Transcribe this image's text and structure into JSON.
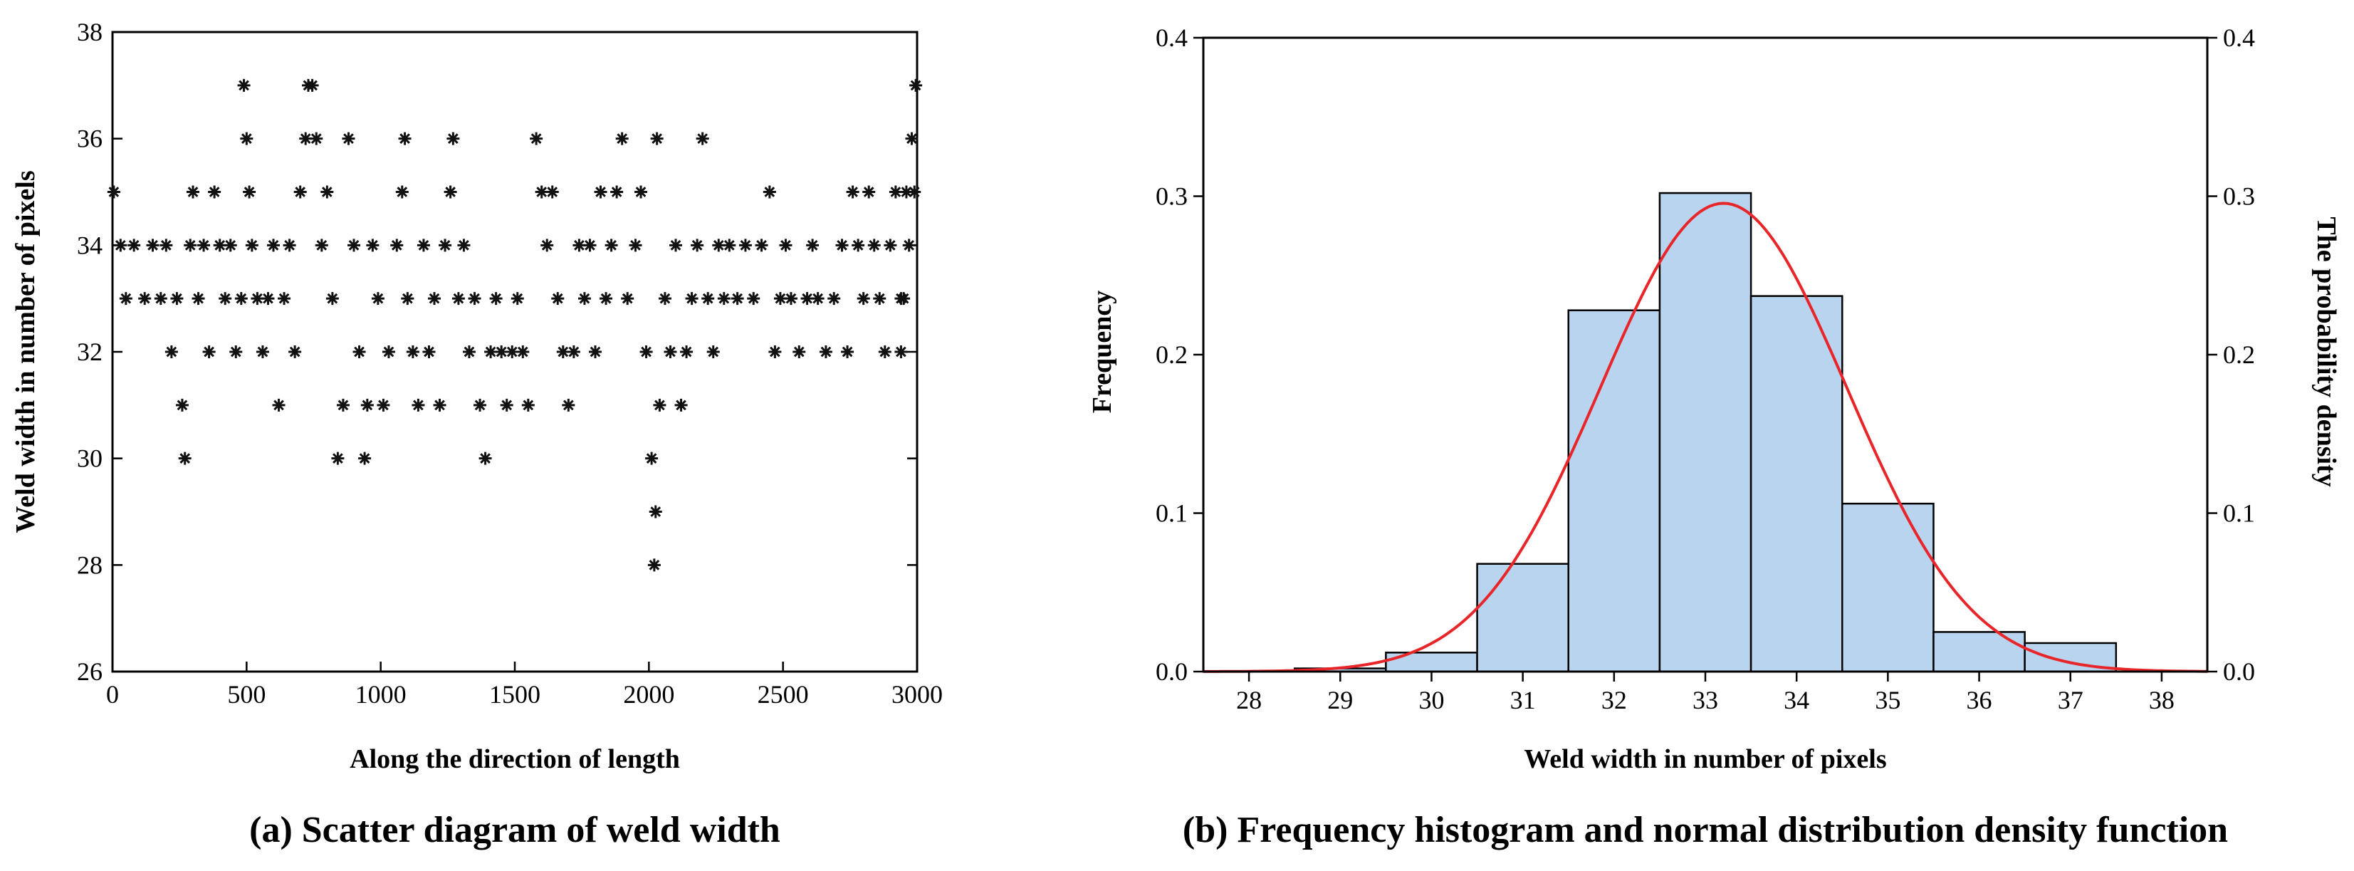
{
  "chart_data": [
    {
      "type": "scatter",
      "caption": "(a) Scatter diagram of weld width",
      "xlabel": "Along the direction of length",
      "ylabel": "Weld width in number of pixels",
      "xlim": [
        0,
        3000
      ],
      "ylim": [
        26,
        38
      ],
      "xticks": [
        "0",
        "500",
        "1000",
        "1500",
        "2000",
        "2500",
        "3000"
      ],
      "yticks": [
        "26",
        "28",
        "30",
        "32",
        "34",
        "36",
        "38"
      ],
      "marker": "asterisk",
      "series": [
        {
          "name": "width",
          "points": [
            [
              5,
              35
            ],
            [
              30,
              34
            ],
            [
              50,
              33
            ],
            [
              80,
              34
            ],
            [
              120,
              33
            ],
            [
              150,
              34
            ],
            [
              180,
              33
            ],
            [
              200,
              34
            ],
            [
              220,
              32
            ],
            [
              240,
              33
            ],
            [
              260,
              31
            ],
            [
              270,
              30
            ],
            [
              290,
              34
            ],
            [
              300,
              35
            ],
            [
              320,
              33
            ],
            [
              340,
              34
            ],
            [
              360,
              32
            ],
            [
              380,
              35
            ],
            [
              400,
              34
            ],
            [
              420,
              33
            ],
            [
              440,
              34
            ],
            [
              460,
              32
            ],
            [
              480,
              33
            ],
            [
              490,
              37
            ],
            [
              500,
              36
            ],
            [
              510,
              35
            ],
            [
              520,
              34
            ],
            [
              540,
              33
            ],
            [
              560,
              32
            ],
            [
              580,
              33
            ],
            [
              600,
              34
            ],
            [
              620,
              31
            ],
            [
              640,
              33
            ],
            [
              660,
              34
            ],
            [
              680,
              32
            ],
            [
              700,
              35
            ],
            [
              720,
              36
            ],
            [
              730,
              37
            ],
            [
              745,
              37
            ],
            [
              760,
              36
            ],
            [
              780,
              34
            ],
            [
              800,
              35
            ],
            [
              820,
              33
            ],
            [
              840,
              30
            ],
            [
              860,
              31
            ],
            [
              880,
              36
            ],
            [
              900,
              34
            ],
            [
              920,
              32
            ],
            [
              940,
              30
            ],
            [
              950,
              31
            ],
            [
              970,
              34
            ],
            [
              990,
              33
            ],
            [
              1010,
              31
            ],
            [
              1030,
              32
            ],
            [
              1060,
              34
            ],
            [
              1080,
              35
            ],
            [
              1090,
              36
            ],
            [
              1100,
              33
            ],
            [
              1120,
              32
            ],
            [
              1140,
              31
            ],
            [
              1160,
              34
            ],
            [
              1180,
              32
            ],
            [
              1200,
              33
            ],
            [
              1220,
              31
            ],
            [
              1240,
              34
            ],
            [
              1260,
              35
            ],
            [
              1270,
              36
            ],
            [
              1290,
              33
            ],
            [
              1310,
              34
            ],
            [
              1330,
              32
            ],
            [
              1350,
              33
            ],
            [
              1370,
              31
            ],
            [
              1390,
              30
            ],
            [
              1410,
              32
            ],
            [
              1430,
              33
            ],
            [
              1450,
              32
            ],
            [
              1470,
              31
            ],
            [
              1490,
              32
            ],
            [
              1510,
              33
            ],
            [
              1530,
              32
            ],
            [
              1550,
              31
            ],
            [
              1580,
              36
            ],
            [
              1600,
              35
            ],
            [
              1620,
              34
            ],
            [
              1640,
              35
            ],
            [
              1660,
              33
            ],
            [
              1680,
              32
            ],
            [
              1700,
              31
            ],
            [
              1720,
              32
            ],
            [
              1740,
              34
            ],
            [
              1760,
              33
            ],
            [
              1780,
              34
            ],
            [
              1800,
              32
            ],
            [
              1820,
              35
            ],
            [
              1840,
              33
            ],
            [
              1860,
              34
            ],
            [
              1880,
              35
            ],
            [
              1900,
              36
            ],
            [
              1920,
              33
            ],
            [
              1950,
              34
            ],
            [
              1970,
              35
            ],
            [
              1990,
              32
            ],
            [
              2010,
              30
            ],
            [
              2020,
              28
            ],
            [
              2025,
              29
            ],
            [
              2030,
              36
            ],
            [
              2040,
              31
            ],
            [
              2060,
              33
            ],
            [
              2080,
              32
            ],
            [
              2100,
              34
            ],
            [
              2120,
              31
            ],
            [
              2140,
              32
            ],
            [
              2160,
              33
            ],
            [
              2180,
              34
            ],
            [
              2200,
              36
            ],
            [
              2220,
              33
            ],
            [
              2240,
              32
            ],
            [
              2260,
              34
            ],
            [
              2280,
              33
            ],
            [
              2300,
              34
            ],
            [
              2330,
              33
            ],
            [
              2360,
              34
            ],
            [
              2390,
              33
            ],
            [
              2420,
              34
            ],
            [
              2450,
              35
            ],
            [
              2470,
              32
            ],
            [
              2490,
              33
            ],
            [
              2510,
              34
            ],
            [
              2530,
              33
            ],
            [
              2560,
              32
            ],
            [
              2590,
              33
            ],
            [
              2610,
              34
            ],
            [
              2630,
              33
            ],
            [
              2660,
              32
            ],
            [
              2690,
              33
            ],
            [
              2720,
              34
            ],
            [
              2740,
              32
            ],
            [
              2760,
              35
            ],
            [
              2780,
              34
            ],
            [
              2800,
              33
            ],
            [
              2820,
              35
            ],
            [
              2840,
              34
            ],
            [
              2860,
              33
            ],
            [
              2880,
              32
            ],
            [
              2900,
              34
            ],
            [
              2920,
              35
            ],
            [
              2940,
              33
            ],
            [
              2960,
              35
            ],
            [
              2980,
              36
            ],
            [
              2995,
              37
            ],
            [
              2990,
              35
            ],
            [
              2970,
              34
            ],
            [
              2950,
              33
            ],
            [
              2940,
              32
            ]
          ]
        }
      ]
    },
    {
      "type": "bar",
      "caption": "(b) Frequency histogram and normal distribution density function",
      "xlabel": "Weld width in number of pixels",
      "ylabel": "Frequency",
      "ylabel_right": "The probability density",
      "xlim": [
        27.5,
        38.5
      ],
      "ylim": [
        0,
        0.4
      ],
      "xticks": [
        "28",
        "29",
        "30",
        "31",
        "32",
        "33",
        "34",
        "35",
        "36",
        "37",
        "38"
      ],
      "yticks": [
        "0.0",
        "0.1",
        "0.2",
        "0.3",
        "0.4"
      ],
      "yticks_right": [
        "0.0",
        "0.1",
        "0.2",
        "0.3",
        "0.4"
      ],
      "categories": [
        28,
        29,
        30,
        31,
        32,
        33,
        34,
        35,
        36,
        37
      ],
      "values": [
        0.0,
        0.002,
        0.012,
        0.068,
        0.228,
        0.302,
        0.237,
        0.106,
        0.025,
        0.018
      ],
      "bar_color": "#b8d4ee",
      "curve": {
        "type": "normal",
        "mean": 33.2,
        "sd": 1.35,
        "color": "#e8262a"
      }
    }
  ]
}
